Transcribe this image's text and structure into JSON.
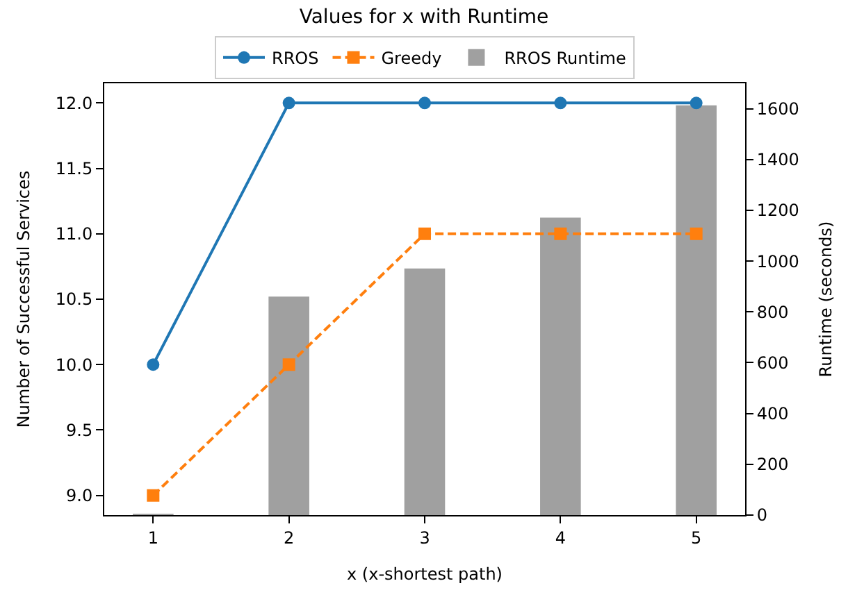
{
  "chart_data": {
    "type": "line",
    "title": "Values for x with Runtime",
    "xlabel": "x (x-shortest path)",
    "ylabel": "Number of Successful Services",
    "y2label": "Runtime (seconds)",
    "x": [
      1,
      2,
      3,
      4,
      5
    ],
    "series": [
      {
        "name": "RROS",
        "color": "#1f77b4",
        "values": [
          10,
          12,
          12,
          12,
          12
        ],
        "marker": "circle",
        "line_style": "solid"
      },
      {
        "name": "Greedy",
        "color": "#ff7f0e",
        "values": [
          9,
          10,
          11,
          11,
          11
        ],
        "marker": "square",
        "line_style": "dashed"
      },
      {
        "name": "RROS Runtime",
        "type": "bar",
        "axis": "y2",
        "color": "#a0a0a0",
        "values": [
          3,
          860,
          971,
          1171,
          1613
        ]
      }
    ],
    "xlim": [
      0.64,
      5.36
    ],
    "xticks": [
      1,
      2,
      3,
      4,
      5
    ],
    "ylim": [
      8.85,
      12.15
    ],
    "yticks": [
      {
        "value": 9,
        "label": "9.0"
      },
      9.5,
      {
        "value": 10,
        "label": "10.0"
      },
      10.5,
      {
        "value": 11,
        "label": "11.0"
      },
      11.5,
      {
        "value": 12,
        "label": "12.0"
      }
    ],
    "y2lim": [
      0,
      1700
    ],
    "y2ticks": [
      0,
      200,
      400,
      600,
      800,
      1000,
      1200,
      1400,
      1600
    ],
    "legend": "top"
  }
}
